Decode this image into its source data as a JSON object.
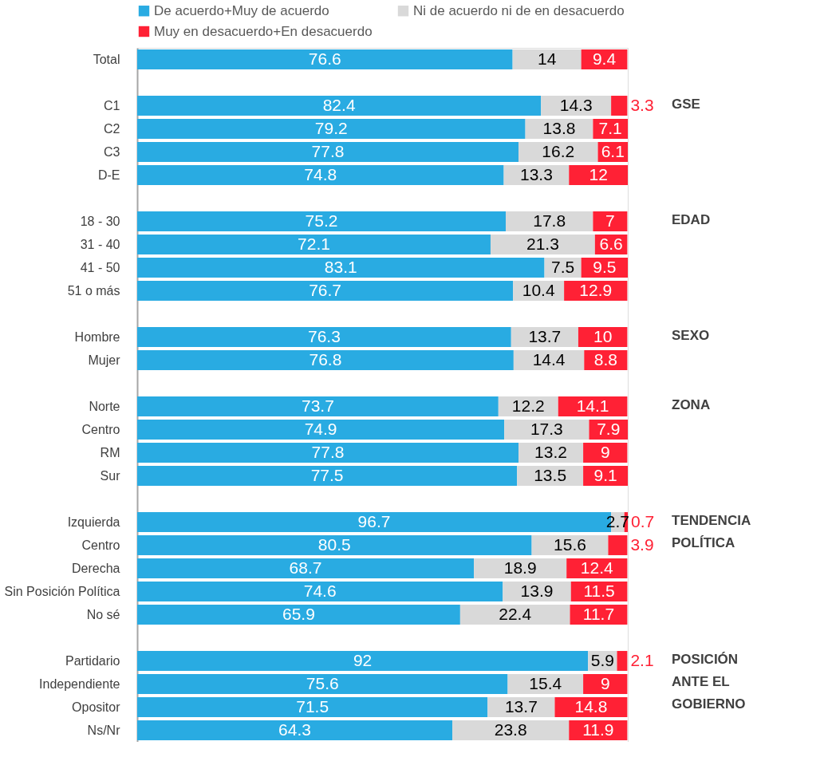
{
  "chart_data": {
    "type": "bar",
    "orientation": "horizontal",
    "stacked": true,
    "data_labels": true,
    "legend": "top",
    "grid": false,
    "categories": [
      "Total",
      null,
      "C1",
      "C2",
      "C3",
      "D-E",
      null,
      "18 - 30",
      "31 - 40",
      "41 - 50",
      "51 o más",
      null,
      "Hombre",
      "Mujer",
      null,
      "Norte",
      "Centro",
      "RM",
      "Sur",
      null,
      "Izquierda",
      "Centro",
      "Derecha",
      "Sin Posición Política",
      "No sé",
      null,
      "Partidario",
      "Independiente",
      "Opositor",
      "Ns/Nr"
    ],
    "series": [
      {
        "name": "De acuerdo+Muy de acuerdo",
        "color": "#29abe2",
        "values": [
          76.6,
          null,
          82.4,
          79.2,
          77.8,
          74.8,
          null,
          75.2,
          72.1,
          83.1,
          76.7,
          null,
          76.3,
          76.8,
          null,
          73.7,
          74.9,
          77.8,
          77.5,
          null,
          96.7,
          80.5,
          68.7,
          74.6,
          65.9,
          null,
          92,
          75.6,
          71.5,
          64.3
        ]
      },
      {
        "name": "Ni de acuerdo ni de en desacuerdo",
        "color": "#d9d9d9",
        "values": [
          14,
          null,
          14.3,
          13.8,
          16.2,
          13.3,
          null,
          17.8,
          21.3,
          7.5,
          10.4,
          null,
          13.7,
          14.4,
          null,
          12.2,
          17.3,
          13.2,
          13.5,
          null,
          2.7,
          15.6,
          18.9,
          13.9,
          22.4,
          null,
          5.9,
          15.4,
          13.7,
          23.8
        ]
      },
      {
        "name": "Muy en desacuerdo+En desacuerdo",
        "color": "#ff2135",
        "values": [
          9.4,
          null,
          3.3,
          7.1,
          6.1,
          12,
          null,
          7,
          6.6,
          9.5,
          12.9,
          null,
          10,
          8.8,
          null,
          14.1,
          7.9,
          9,
          9.1,
          null,
          0.7,
          3.9,
          12.4,
          11.5,
          11.7,
          null,
          2.1,
          9,
          14.8,
          11.9
        ]
      }
    ],
    "annotations": [
      "GSE",
      "EDAD",
      "SEXO",
      "ZONA",
      "TENDENCIA\nPOLÍTICA",
      "POSICIÓN\nANTE EL\nGOBIERNO"
    ]
  }
}
